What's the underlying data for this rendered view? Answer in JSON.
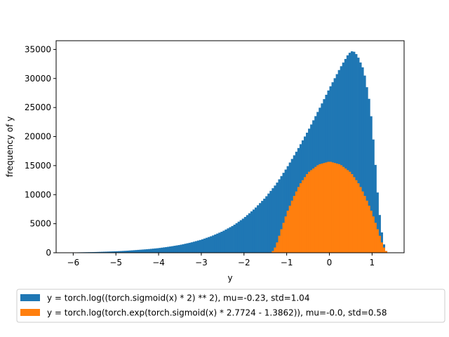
{
  "chart_data": {
    "type": "bar",
    "title": "",
    "xlabel": "y",
    "ylabel": "frequency of y",
    "xlim": [
      -6.4,
      1.75
    ],
    "ylim": [
      0,
      36500
    ],
    "xticks": [
      -6,
      -5,
      -4,
      -3,
      -2,
      -1,
      0,
      1
    ],
    "xtick_labels": [
      "−6",
      "−5",
      "−4",
      "−3",
      "−2",
      "−1",
      "0",
      "1"
    ],
    "yticks": [
      0,
      5000,
      10000,
      15000,
      20000,
      25000,
      30000,
      35000
    ],
    "ytick_labels": [
      "0",
      "5000",
      "10000",
      "15000",
      "20000",
      "25000",
      "30000",
      "35000"
    ],
    "grid": false,
    "legend_position": "below-center",
    "series": [
      {
        "name": "y = torch.log((torch.sigmoid(x) * 2) ** 2), mu=-0.23, std=1.04",
        "color": "#1f77b4",
        "x": [
          -6.0,
          -5.5,
          -5.0,
          -4.75,
          -4.5,
          -4.25,
          -4.0,
          -3.75,
          -3.5,
          -3.25,
          -3.0,
          -2.75,
          -2.5,
          -2.25,
          -2.0,
          -1.75,
          -1.5,
          -1.25,
          -1.0,
          -0.75,
          -0.5,
          -0.25,
          0.0,
          0.25,
          0.45,
          0.55,
          0.65,
          0.8,
          0.95,
          1.05,
          1.15,
          1.25,
          1.33,
          1.37
        ],
        "values": [
          50,
          120,
          250,
          350,
          480,
          620,
          800,
          1050,
          1350,
          1750,
          2250,
          2900,
          3700,
          4700,
          6000,
          7600,
          9500,
          11800,
          14600,
          17700,
          21000,
          24600,
          28300,
          31800,
          34300,
          34800,
          34000,
          31500,
          25500,
          17500,
          8000,
          2000,
          200,
          0
        ]
      },
      {
        "name": "y = torch.log(torch.exp(torch.sigmoid(x) * 2.7724 - 1.3862)), mu=-0.0, std=0.58",
        "color": "#ff7f0e",
        "x": [
          -1.35,
          -1.25,
          -1.15,
          -1.0,
          -0.85,
          -0.7,
          -0.5,
          -0.25,
          0.0,
          0.25,
          0.5,
          0.7,
          0.85,
          1.0,
          1.15,
          1.25,
          1.35
        ],
        "values": [
          0,
          1200,
          3500,
          6800,
          9400,
          11700,
          13800,
          15200,
          15700,
          15200,
          13800,
          11700,
          9400,
          6800,
          3500,
          1200,
          0
        ]
      }
    ]
  }
}
